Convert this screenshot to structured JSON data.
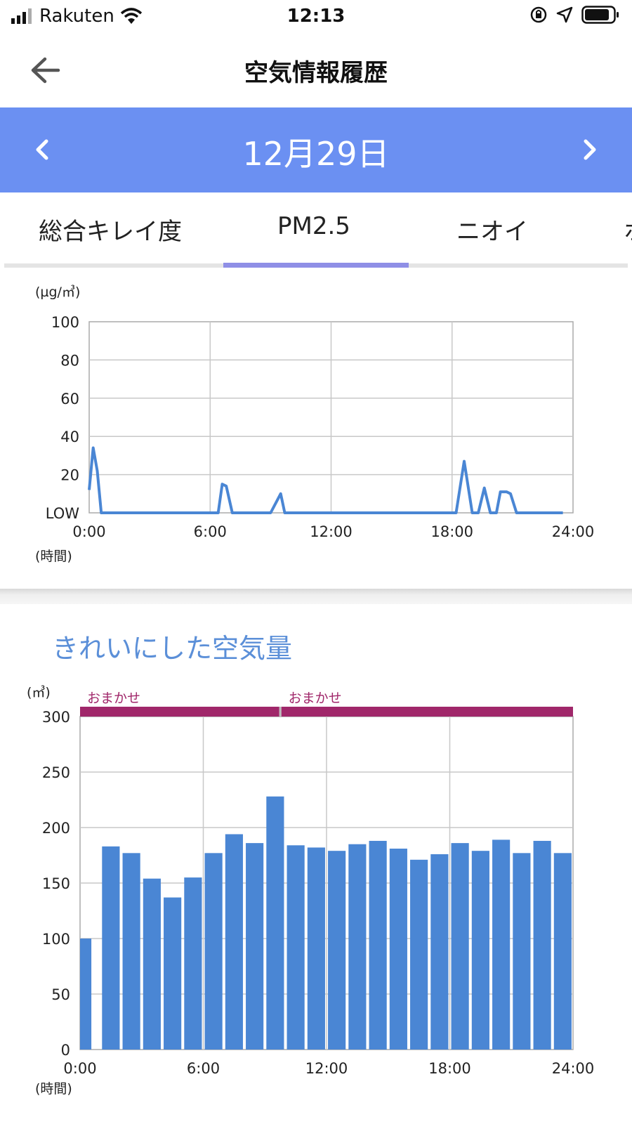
{
  "status_bar": {
    "carrier": "Rakuten",
    "time": "12:13",
    "icons": [
      "signal-icon",
      "wifi-icon",
      "orientation-lock-icon",
      "location-icon",
      "battery-icon"
    ]
  },
  "header": {
    "title": "空気情報履歴",
    "back_icon": "arrow-left-icon"
  },
  "date_nav": {
    "date": "12月29日",
    "prev_icon": "chevron-left-icon",
    "next_icon": "chevron-right-icon",
    "bar_color": "#6b90f2"
  },
  "tabs": [
    {
      "label": "総合キレイ度",
      "active": false
    },
    {
      "label": "PM2.5",
      "active": true
    },
    {
      "label": "ニオイ",
      "active": false
    },
    {
      "label": "ホ",
      "active": false
    }
  ],
  "section_title": "きれいにした空気量",
  "chart_data": [
    {
      "type": "line",
      "unit_label": "(µg/㎥)",
      "xlabel": "(時間)",
      "y_ticks": [
        0,
        20,
        40,
        60,
        80,
        100
      ],
      "y_tick_labels": [
        "LOW",
        "20",
        "40",
        "60",
        "80",
        "100"
      ],
      "x_tick_labels": [
        "0:00",
        "6:00",
        "12:00",
        "18:00",
        "24:00"
      ],
      "xlim": [
        0,
        24
      ],
      "ylim": [
        0,
        100
      ],
      "grid": true,
      "line_color": "#4a86d4",
      "points": [
        [
          0.0,
          12
        ],
        [
          0.2,
          34
        ],
        [
          0.4,
          22
        ],
        [
          0.6,
          0
        ],
        [
          1.0,
          0
        ],
        [
          6.2,
          0
        ],
        [
          6.4,
          0
        ],
        [
          6.6,
          15
        ],
        [
          6.8,
          14
        ],
        [
          7.1,
          0
        ],
        [
          9.0,
          0
        ],
        [
          9.5,
          10
        ],
        [
          9.7,
          0
        ],
        [
          18.2,
          0
        ],
        [
          18.6,
          27
        ],
        [
          19.0,
          0
        ],
        [
          19.3,
          0
        ],
        [
          19.6,
          13
        ],
        [
          19.9,
          0
        ],
        [
          20.2,
          0
        ],
        [
          20.4,
          11
        ],
        [
          20.7,
          11
        ],
        [
          20.9,
          10
        ],
        [
          21.2,
          0
        ],
        [
          23.5,
          0
        ]
      ]
    },
    {
      "type": "bar",
      "unit_label": "(㎥)",
      "xlabel": "(時間)",
      "y_ticks": [
        0,
        50,
        100,
        150,
        200,
        250,
        300
      ],
      "x_tick_labels": [
        "0:00",
        "6:00",
        "12:00",
        "18:00",
        "24:00"
      ],
      "xlim": [
        0,
        24
      ],
      "ylim": [
        0,
        300
      ],
      "grid": true,
      "bar_color": "#4a86d4",
      "mode_color": "#a0276a",
      "modes": [
        {
          "label": "おまかせ",
          "start": 0,
          "end": 9.7
        },
        {
          "label": "おまかせ",
          "start": 9.8,
          "end": 24
        }
      ],
      "values": [
        100,
        183,
        177,
        154,
        137,
        155,
        177,
        194,
        186,
        228,
        184,
        182,
        179,
        185,
        188,
        181,
        171,
        176,
        186,
        179,
        189,
        177,
        188,
        177
      ]
    }
  ]
}
